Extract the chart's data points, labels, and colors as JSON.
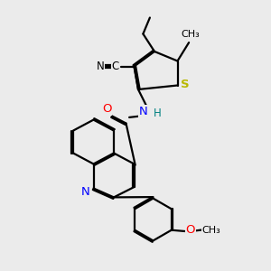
{
  "bg_color": "#ebebeb",
  "atom_colors": {
    "S": "#b8b800",
    "N": "#0000ff",
    "O": "#ff0000",
    "H": "#008080",
    "C": "#000000"
  },
  "bond_color": "#000000",
  "lw": 1.6,
  "dbo": 0.055,
  "figsize": [
    3.0,
    3.0
  ],
  "dpi": 100
}
